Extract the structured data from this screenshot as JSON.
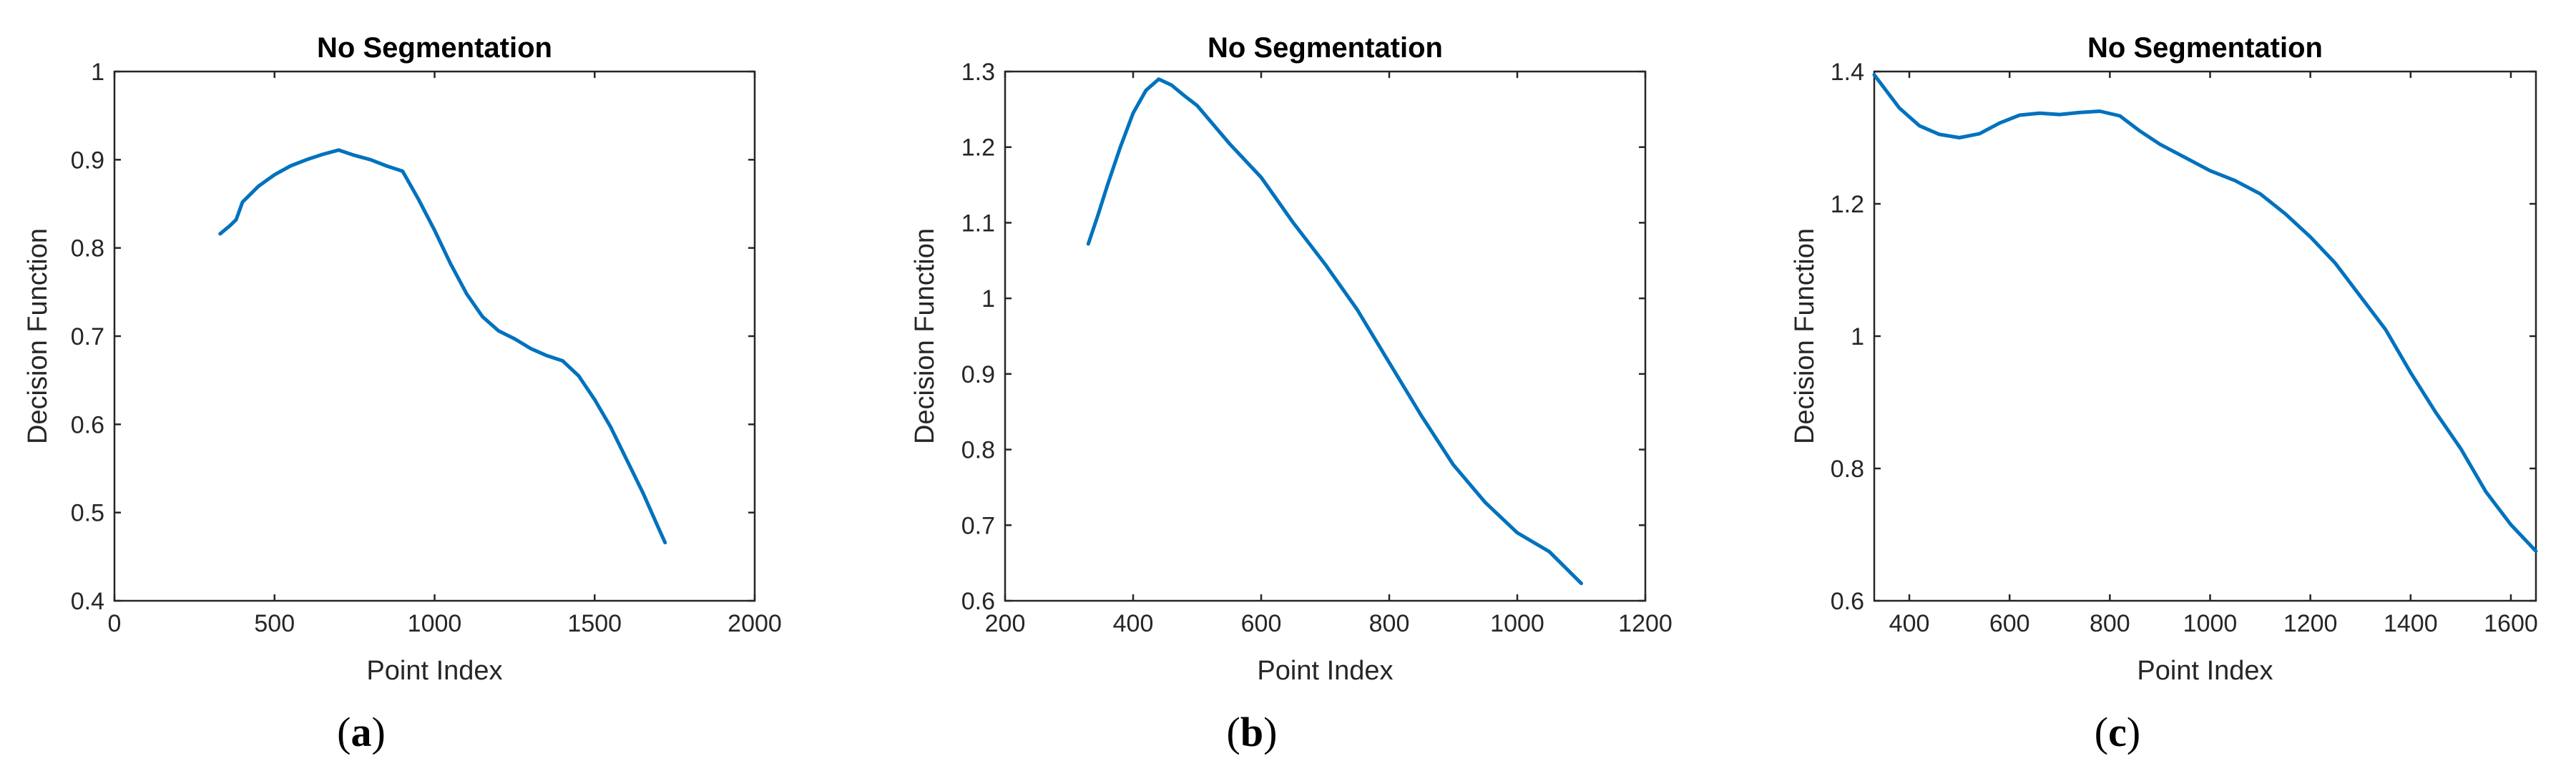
{
  "chart_data": [
    {
      "type": "line",
      "panel": "a",
      "title": "No Segmentation",
      "xlabel": "Point Index",
      "ylabel": "Decision Function",
      "xlim": [
        0,
        2000
      ],
      "ylim": [
        0.4,
        1.0
      ],
      "xticks": [
        0,
        500,
        1000,
        1500,
        2000
      ],
      "yticks": [
        0.4,
        0.5,
        0.6,
        0.7,
        0.8,
        0.9,
        1.0
      ],
      "xtick_labels": [
        "0",
        "500",
        "1000",
        "1500",
        "2000"
      ],
      "ytick_labels": [
        "0.4",
        "0.5",
        "0.6",
        "0.7",
        "0.8",
        "0.9",
        "1"
      ],
      "caption_open": "(",
      "caption_letter": "a",
      "caption_close": ")",
      "series": [
        {
          "name": "Decision Function",
          "color": "#0072BD",
          "x": [
            330,
            360,
            380,
            400,
            450,
            500,
            550,
            600,
            650,
            700,
            750,
            800,
            850,
            900,
            950,
            1000,
            1050,
            1100,
            1150,
            1200,
            1250,
            1300,
            1350,
            1400,
            1450,
            1500,
            1550,
            1600,
            1650,
            1700,
            1720
          ],
          "y": [
            0.816,
            0.825,
            0.832,
            0.852,
            0.87,
            0.883,
            0.893,
            0.9,
            0.906,
            0.911,
            0.905,
            0.9,
            0.893,
            0.887,
            0.855,
            0.82,
            0.782,
            0.748,
            0.722,
            0.706,
            0.697,
            0.686,
            0.678,
            0.672,
            0.655,
            0.628,
            0.597,
            0.56,
            0.523,
            0.482,
            0.466
          ]
        }
      ]
    },
    {
      "type": "line",
      "panel": "b",
      "title": "No Segmentation",
      "xlabel": "Point Index",
      "ylabel": "Decision Function",
      "xlim": [
        200,
        1200
      ],
      "ylim": [
        0.6,
        1.3
      ],
      "xticks": [
        200,
        400,
        600,
        800,
        1000,
        1200
      ],
      "yticks": [
        0.6,
        0.7,
        0.8,
        0.9,
        1.0,
        1.1,
        1.2,
        1.3
      ],
      "xtick_labels": [
        "200",
        "400",
        "600",
        "800",
        "1000",
        "1200"
      ],
      "ytick_labels": [
        "0.6",
        "0.7",
        "0.8",
        "0.9",
        "1",
        "1.1",
        "1.2",
        "1.3"
      ],
      "caption_open": "(",
      "caption_letter": "b",
      "caption_close": ")",
      "series": [
        {
          "name": "Decision Function",
          "color": "#0072BD",
          "x": [
            330,
            345,
            360,
            380,
            400,
            420,
            440,
            460,
            480,
            500,
            550,
            600,
            650,
            700,
            750,
            800,
            850,
            900,
            950,
            1000,
            1050,
            1100
          ],
          "y": [
            1.072,
            1.11,
            1.15,
            1.2,
            1.245,
            1.275,
            1.29,
            1.282,
            1.268,
            1.255,
            1.205,
            1.16,
            1.1,
            1.045,
            0.985,
            0.915,
            0.845,
            0.78,
            0.73,
            0.69,
            0.665,
            0.623
          ]
        }
      ]
    },
    {
      "type": "line",
      "panel": "c",
      "title": "No Segmentation",
      "xlabel": "Point Index",
      "ylabel": "Decision Function",
      "xlim": [
        330,
        1650
      ],
      "ylim": [
        0.6,
        1.4
      ],
      "xticks": [
        400,
        600,
        800,
        1000,
        1200,
        1400,
        1600
      ],
      "yticks": [
        0.6,
        0.8,
        1.0,
        1.2,
        1.4
      ],
      "xtick_labels": [
        "400",
        "600",
        "800",
        "1000",
        "1200",
        "1400",
        "1600"
      ],
      "ytick_labels": [
        "0.6",
        "0.8",
        "1",
        "1.2",
        "1.4"
      ],
      "caption_open": "(",
      "caption_letter": "c",
      "caption_close": ")",
      "series": [
        {
          "name": "Decision Function",
          "color": "#0072BD",
          "x": [
            330,
            350,
            380,
            420,
            460,
            500,
            540,
            580,
            620,
            660,
            700,
            740,
            780,
            820,
            860,
            900,
            950,
            1000,
            1050,
            1100,
            1150,
            1200,
            1250,
            1300,
            1350,
            1400,
            1450,
            1500,
            1550,
            1600,
            1650
          ],
          "y": [
            1.395,
            1.375,
            1.345,
            1.318,
            1.305,
            1.3,
            1.306,
            1.322,
            1.334,
            1.337,
            1.335,
            1.338,
            1.34,
            1.333,
            1.31,
            1.29,
            1.27,
            1.25,
            1.235,
            1.215,
            1.185,
            1.15,
            1.11,
            1.06,
            1.01,
            0.945,
            0.885,
            0.83,
            0.765,
            0.715,
            0.675
          ]
        }
      ]
    }
  ]
}
